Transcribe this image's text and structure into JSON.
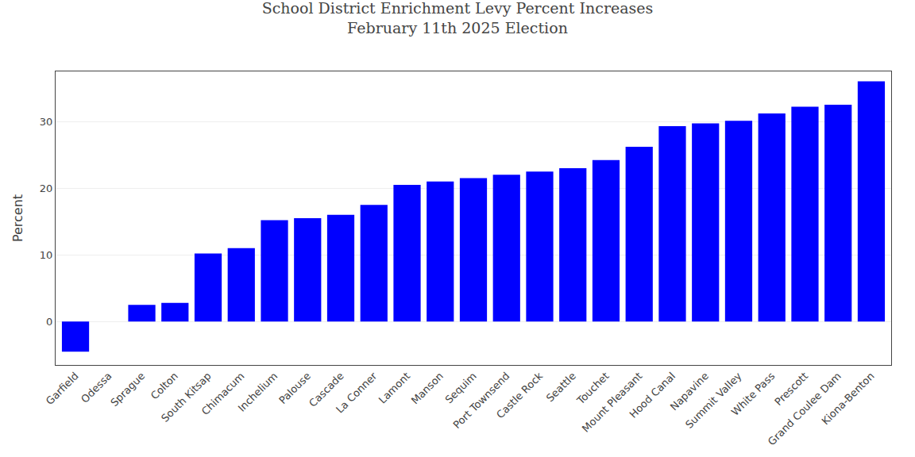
{
  "chart_data": {
    "type": "bar",
    "title": "School District Enrichment Levy Percent Increases\nFebruary 11th 2025 Election",
    "ylabel": "Percent",
    "categories": [
      "Garfield",
      "Odessa",
      "Sprague",
      "Colton",
      "South Kitsap",
      "Chimacum",
      "Inchelium",
      "Palouse",
      "Cascade",
      "La Conner",
      "Lamont",
      "Manson",
      "Sequim",
      "Port Townsend",
      "Castle Rock",
      "Seattle",
      "Touchet",
      "Mount Pleasant",
      "Hood Canal",
      "Napavine",
      "Summit Valley",
      "White Pass",
      "Prescott",
      "Grand Coulee Dam",
      "Kiona-Benton"
    ],
    "values": [
      -4.5,
      0.0,
      2.5,
      2.8,
      10.2,
      11.0,
      15.2,
      15.5,
      16.0,
      17.5,
      20.5,
      21.0,
      21.5,
      22.0,
      22.5,
      23.0,
      24.2,
      26.2,
      29.3,
      29.7,
      30.1,
      31.2,
      32.2,
      32.5,
      36.0
    ],
    "color": "#0000ff",
    "ylim": [
      -6.5,
      37.5
    ],
    "yticks": [
      0,
      10,
      20,
      30
    ],
    "grid": true
  }
}
